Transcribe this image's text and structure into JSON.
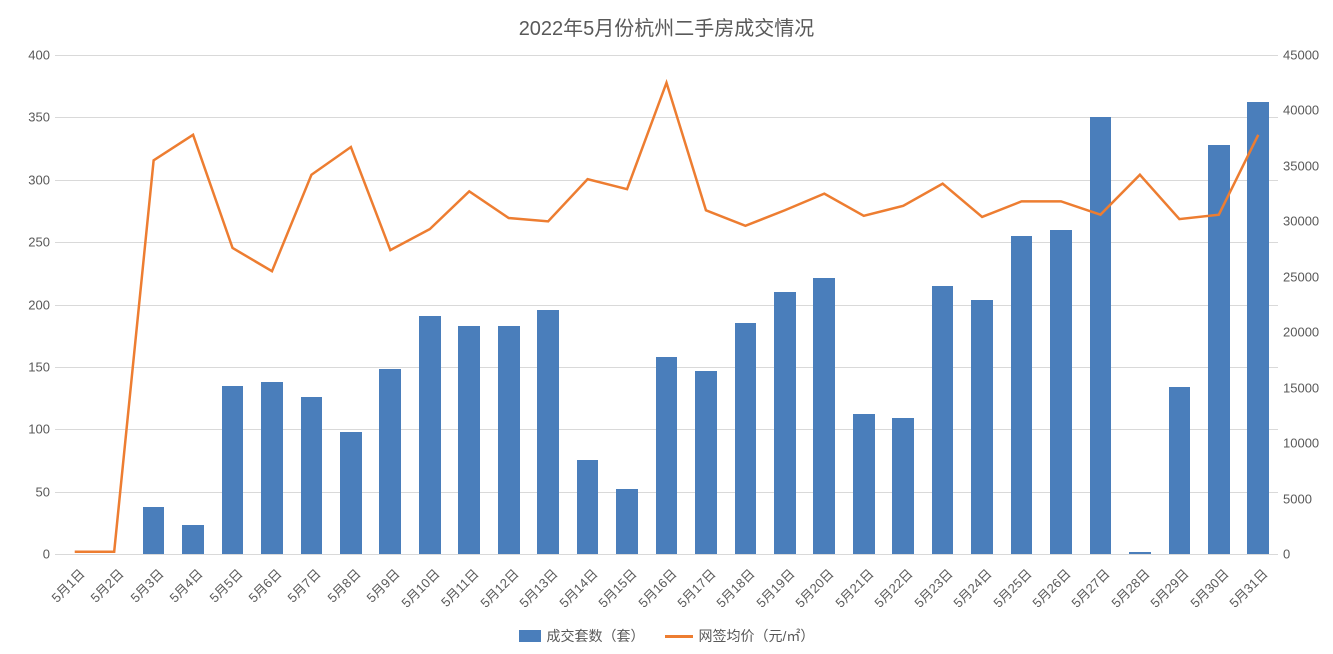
{
  "chart": {
    "type": "combo-bar-line",
    "title": "2022年5月份杭州二手房成交情况",
    "title_fontsize": 20,
    "title_color": "#595959",
    "background_color": "#ffffff",
    "grid_color": "#d9d9d9",
    "axis_label_color": "#595959",
    "axis_label_fontsize": 13,
    "categories": [
      "5月1日",
      "5月2日",
      "5月3日",
      "5月4日",
      "5月5日",
      "5月6日",
      "5月7日",
      "5月8日",
      "5月9日",
      "5月10日",
      "5月11日",
      "5月12日",
      "5月13日",
      "5月14日",
      "5月15日",
      "5月16日",
      "5月17日",
      "5月18日",
      "5月19日",
      "5月20日",
      "5月21日",
      "5月22日",
      "5月23日",
      "5月24日",
      "5月25日",
      "5月26日",
      "5月27日",
      "5月28日",
      "5月29日",
      "5月30日",
      "5月31日"
    ],
    "x_label_rotation": -45,
    "bar_series": {
      "name": "成交套数（套）",
      "values": [
        0,
        0,
        38,
        23,
        135,
        138,
        126,
        98,
        148,
        191,
        183,
        183,
        196,
        75,
        52,
        158,
        147,
        185,
        210,
        221,
        112,
        109,
        215,
        204,
        255,
        260,
        350,
        2,
        134,
        328,
        362
      ],
      "color": "#4a7ebb",
      "bar_width_ratio": 0.55,
      "axis": "left"
    },
    "line_series": {
      "name": "网签均价（元/㎡）",
      "values": [
        200,
        200,
        35500,
        37800,
        27600,
        25500,
        34200,
        36700,
        27400,
        29300,
        32700,
        30300,
        30000,
        33800,
        32900,
        42500,
        31000,
        29600,
        31000,
        32500,
        30500,
        31400,
        33400,
        30400,
        31800,
        31800,
        30600,
        34200,
        30200,
        30600,
        37800
      ],
      "color": "#ed7d31",
      "line_width": 2.5,
      "marker": "none",
      "axis": "right"
    },
    "y_left": {
      "min": 0,
      "max": 400,
      "step": 50
    },
    "y_right": {
      "min": 0,
      "max": 45000,
      "step": 5000
    },
    "legend": {
      "items": [
        "成交套数（套）",
        "网签均价（元/㎡）"
      ],
      "position": "bottom-center"
    }
  }
}
